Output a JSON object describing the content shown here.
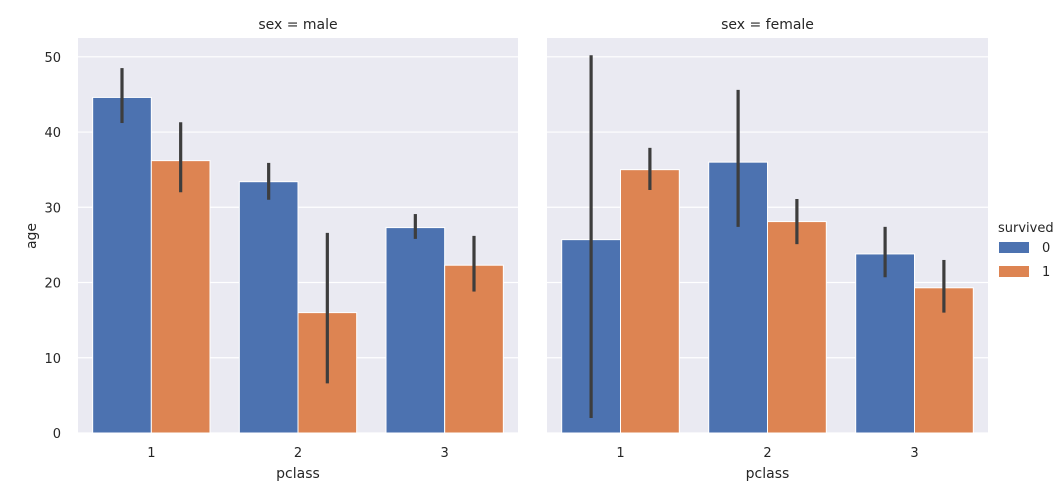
{
  "chart_data": {
    "type": "bar",
    "facet_variable": "sex",
    "hue_variable": "survived",
    "xlabel": "pclass",
    "ylabel": "age",
    "ylim": [
      0,
      52.5
    ],
    "yticks": [
      0,
      10,
      20,
      30,
      40,
      50
    ],
    "categories": [
      "1",
      "2",
      "3"
    ],
    "grid": true,
    "legend": {
      "title": "survived",
      "placement": "right",
      "entries": [
        {
          "label": "0",
          "color": "#4c72b0"
        },
        {
          "label": "1",
          "color": "#dd8452"
        }
      ]
    },
    "facets": [
      {
        "title": "sex = male",
        "series": [
          {
            "name": "0",
            "values": [
              44.6,
              33.4,
              27.3
            ],
            "ci": [
              [
                41.2,
                48.5
              ],
              [
                31.0,
                35.9
              ],
              [
                25.8,
                29.1
              ]
            ]
          },
          {
            "name": "1",
            "values": [
              36.2,
              16.0,
              22.3
            ],
            "ci": [
              [
                32.0,
                41.3
              ],
              [
                6.6,
                26.6
              ],
              [
                18.8,
                26.2
              ]
            ]
          }
        ]
      },
      {
        "title": "sex = female",
        "series": [
          {
            "name": "0",
            "values": [
              25.7,
              36.0,
              23.8
            ],
            "ci": [
              [
                2.0,
                50.2
              ],
              [
                27.4,
                45.6
              ],
              [
                20.7,
                27.4
              ]
            ]
          },
          {
            "name": "1",
            "values": [
              35.0,
              28.1,
              19.3
            ],
            "ci": [
              [
                32.3,
                37.9
              ],
              [
                25.1,
                31.1
              ],
              [
                16.0,
                23.0
              ]
            ]
          }
        ]
      }
    ]
  }
}
